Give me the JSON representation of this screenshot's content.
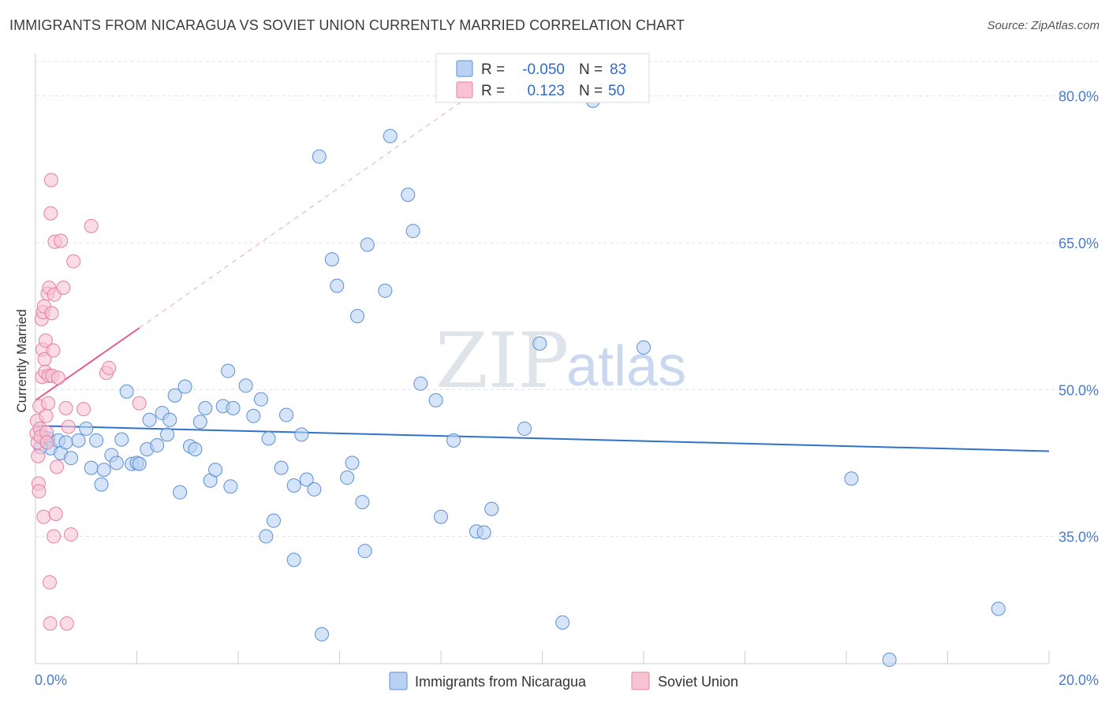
{
  "title": "IMMIGRANTS FROM NICARAGUA VS SOVIET UNION CURRENTLY MARRIED CORRELATION CHART",
  "source": "Source: ZipAtlas.com",
  "watermark": {
    "zip": "ZIP",
    "atlas": "atlas"
  },
  "stats": [
    {
      "r_label": "R =",
      "r_value": "-0.050",
      "n_label": "N =",
      "n_value": "83"
    },
    {
      "r_label": "R =",
      "r_value": "0.123",
      "n_label": "N =",
      "n_value": "50"
    }
  ],
  "legend": [
    "Immigrants from Nicaragua",
    "Soviet Union"
  ],
  "colors": {
    "nicaragua_fill": "#b9d2f3",
    "nicaragua_stroke": "#5b8fd6",
    "nicaragua_line": "#2f72cc",
    "soviet_fill": "#f8c3d3",
    "soviet_stroke": "#e6809f",
    "soviet_line": "#e0608a",
    "grid": "#dde1e8",
    "tick_text": "#4a7cc9"
  },
  "chart_data": {
    "type": "scatter",
    "title": "IMMIGRANTS FROM NICARAGUA VS SOVIET UNION CURRENTLY MARRIED CORRELATION CHART",
    "xlabel": "",
    "ylabel": "Currently Married",
    "xlim": [
      0,
      20
    ],
    "ylim": [
      22,
      84
    ],
    "x_tick_labels": [
      "0.0%",
      "20.0%"
    ],
    "y_ticks": [
      35,
      50,
      65,
      80
    ],
    "y_tick_labels": [
      "35.0%",
      "50.0%",
      "65.0%",
      "80.0%"
    ],
    "grid": true,
    "legend_position": "bottom-center",
    "series": [
      {
        "name": "Immigrants from Nicaragua",
        "points": [
          [
            0.15,
            45.2
          ],
          [
            0.2,
            44.7
          ],
          [
            0.25,
            45.0
          ],
          [
            0.3,
            44.0
          ],
          [
            0.45,
            44.8
          ],
          [
            0.5,
            43.5
          ],
          [
            0.6,
            44.6
          ],
          [
            0.7,
            43.0
          ],
          [
            0.85,
            44.8
          ],
          [
            1.0,
            46.0
          ],
          [
            1.1,
            42.0
          ],
          [
            1.2,
            44.8
          ],
          [
            1.3,
            40.3
          ],
          [
            1.35,
            41.8
          ],
          [
            1.5,
            43.3
          ],
          [
            1.6,
            42.5
          ],
          [
            1.7,
            44.9
          ],
          [
            1.8,
            49.8
          ],
          [
            1.9,
            42.4
          ],
          [
            2.0,
            42.5
          ],
          [
            2.05,
            42.4
          ],
          [
            2.2,
            43.9
          ],
          [
            2.25,
            46.9
          ],
          [
            2.4,
            44.3
          ],
          [
            2.5,
            47.6
          ],
          [
            2.6,
            45.4
          ],
          [
            2.65,
            46.9
          ],
          [
            2.75,
            49.4
          ],
          [
            2.85,
            39.5
          ],
          [
            2.95,
            50.3
          ],
          [
            3.05,
            44.2
          ],
          [
            3.15,
            43.9
          ],
          [
            3.25,
            46.7
          ],
          [
            3.35,
            48.1
          ],
          [
            3.45,
            40.7
          ],
          [
            3.55,
            41.8
          ],
          [
            3.7,
            48.3
          ],
          [
            3.8,
            51.9
          ],
          [
            3.85,
            40.1
          ],
          [
            3.9,
            48.1
          ],
          [
            4.15,
            50.4
          ],
          [
            4.3,
            47.3
          ],
          [
            4.45,
            49.0
          ],
          [
            4.55,
            35.0
          ],
          [
            4.6,
            45.0
          ],
          [
            4.7,
            36.6
          ],
          [
            4.85,
            42.0
          ],
          [
            4.95,
            47.4
          ],
          [
            5.1,
            40.2
          ],
          [
            5.1,
            32.6
          ],
          [
            5.25,
            45.4
          ],
          [
            5.35,
            40.8
          ],
          [
            5.5,
            39.8
          ],
          [
            5.6,
            73.8
          ],
          [
            5.65,
            25.0
          ],
          [
            5.85,
            63.3
          ],
          [
            5.95,
            60.6
          ],
          [
            6.15,
            41.0
          ],
          [
            6.25,
            42.5
          ],
          [
            6.35,
            57.5
          ],
          [
            6.45,
            38.5
          ],
          [
            6.5,
            33.5
          ],
          [
            6.55,
            64.8
          ],
          [
            6.9,
            60.1
          ],
          [
            7.0,
            75.9
          ],
          [
            7.35,
            69.9
          ],
          [
            7.45,
            66.2
          ],
          [
            7.6,
            50.6
          ],
          [
            7.9,
            48.9
          ],
          [
            8.0,
            37.0
          ],
          [
            8.25,
            44.8
          ],
          [
            8.7,
            35.5
          ],
          [
            8.85,
            35.4
          ],
          [
            9.0,
            37.8
          ],
          [
            9.65,
            46.0
          ],
          [
            9.95,
            54.7
          ],
          [
            10.4,
            26.2
          ],
          [
            11.0,
            79.5
          ],
          [
            12.0,
            54.3
          ],
          [
            16.1,
            40.9
          ],
          [
            16.85,
            22.4
          ],
          [
            19.0,
            27.6
          ],
          [
            0.1,
            44.1
          ]
        ]
      },
      {
        "name": "Soviet Union",
        "points": [
          [
            0.02,
            45.5
          ],
          [
            0.03,
            46.8
          ],
          [
            0.04,
            44.6
          ],
          [
            0.05,
            43.2
          ],
          [
            0.06,
            40.4
          ],
          [
            0.07,
            39.6
          ],
          [
            0.08,
            48.3
          ],
          [
            0.09,
            46.0
          ],
          [
            0.1,
            45.2
          ],
          [
            0.12,
            57.2
          ],
          [
            0.13,
            51.3
          ],
          [
            0.14,
            54.1
          ],
          [
            0.15,
            57.9
          ],
          [
            0.16,
            37.0
          ],
          [
            0.17,
            58.5
          ],
          [
            0.18,
            53.1
          ],
          [
            0.19,
            51.8
          ],
          [
            0.2,
            55.0
          ],
          [
            0.21,
            47.3
          ],
          [
            0.22,
            45.6
          ],
          [
            0.23,
            44.6
          ],
          [
            0.24,
            59.8
          ],
          [
            0.25,
            48.6
          ],
          [
            0.26,
            51.4
          ],
          [
            0.27,
            60.4
          ],
          [
            0.28,
            30.3
          ],
          [
            0.29,
            26.1
          ],
          [
            0.3,
            68.0
          ],
          [
            0.31,
            71.4
          ],
          [
            0.32,
            57.8
          ],
          [
            0.33,
            51.4
          ],
          [
            0.35,
            54.0
          ],
          [
            0.36,
            35.0
          ],
          [
            0.37,
            59.7
          ],
          [
            0.38,
            65.1
          ],
          [
            0.4,
            37.3
          ],
          [
            0.42,
            42.1
          ],
          [
            0.45,
            51.2
          ],
          [
            0.5,
            65.2
          ],
          [
            0.55,
            60.4
          ],
          [
            0.6,
            48.1
          ],
          [
            0.62,
            26.1
          ],
          [
            0.65,
            46.2
          ],
          [
            0.7,
            35.2
          ],
          [
            0.75,
            63.1
          ],
          [
            0.95,
            48.0
          ],
          [
            1.1,
            66.7
          ],
          [
            1.4,
            51.7
          ],
          [
            1.45,
            52.2
          ],
          [
            2.05,
            48.6
          ]
        ]
      }
    ],
    "trend_lines": [
      {
        "series": "Immigrants from Nicaragua",
        "x": [
          0,
          20
        ],
        "y": [
          46.3,
          43.7
        ]
      },
      {
        "series": "Soviet Union",
        "x": [
          0,
          2.05
        ],
        "y": [
          48.9,
          56.3
        ],
        "extended_x": [
          2.05,
          8.4
        ],
        "extended_y": [
          56.3,
          79.4
        ]
      }
    ]
  }
}
